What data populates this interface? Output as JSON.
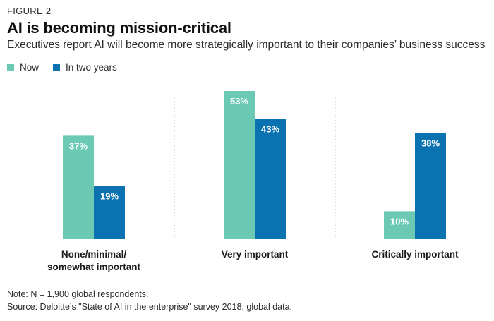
{
  "figure_label": "FIGURE 2",
  "title": "AI is becoming mission-critical",
  "subtitle": "Executives report AI will become more strategically important to their companies’ business success",
  "colors": {
    "now": "#6CC9B4",
    "two_years": "#0A72B0",
    "divider": "#b8b8b8"
  },
  "chart_data": {
    "type": "bar",
    "categories": [
      [
        "None/minimal/",
        "somewhat important"
      ],
      [
        "Very important"
      ],
      [
        "Critically important"
      ]
    ],
    "series": [
      {
        "name": "Now",
        "values": [
          37,
          53,
          10
        ],
        "labels": [
          "37%",
          "53%",
          "10%"
        ]
      },
      {
        "name": "In two years",
        "values": [
          19,
          43,
          38
        ],
        "labels": [
          "19%",
          "43%",
          "38%"
        ]
      }
    ],
    "ylim": [
      0,
      53
    ],
    "legend_position": "top-left",
    "grid": false
  },
  "notes": {
    "note": "Note: N = 1,900 global respondents.",
    "source": "Source: Deloitte’s \"State of AI in the enterprise\" survey 2018, global data."
  }
}
